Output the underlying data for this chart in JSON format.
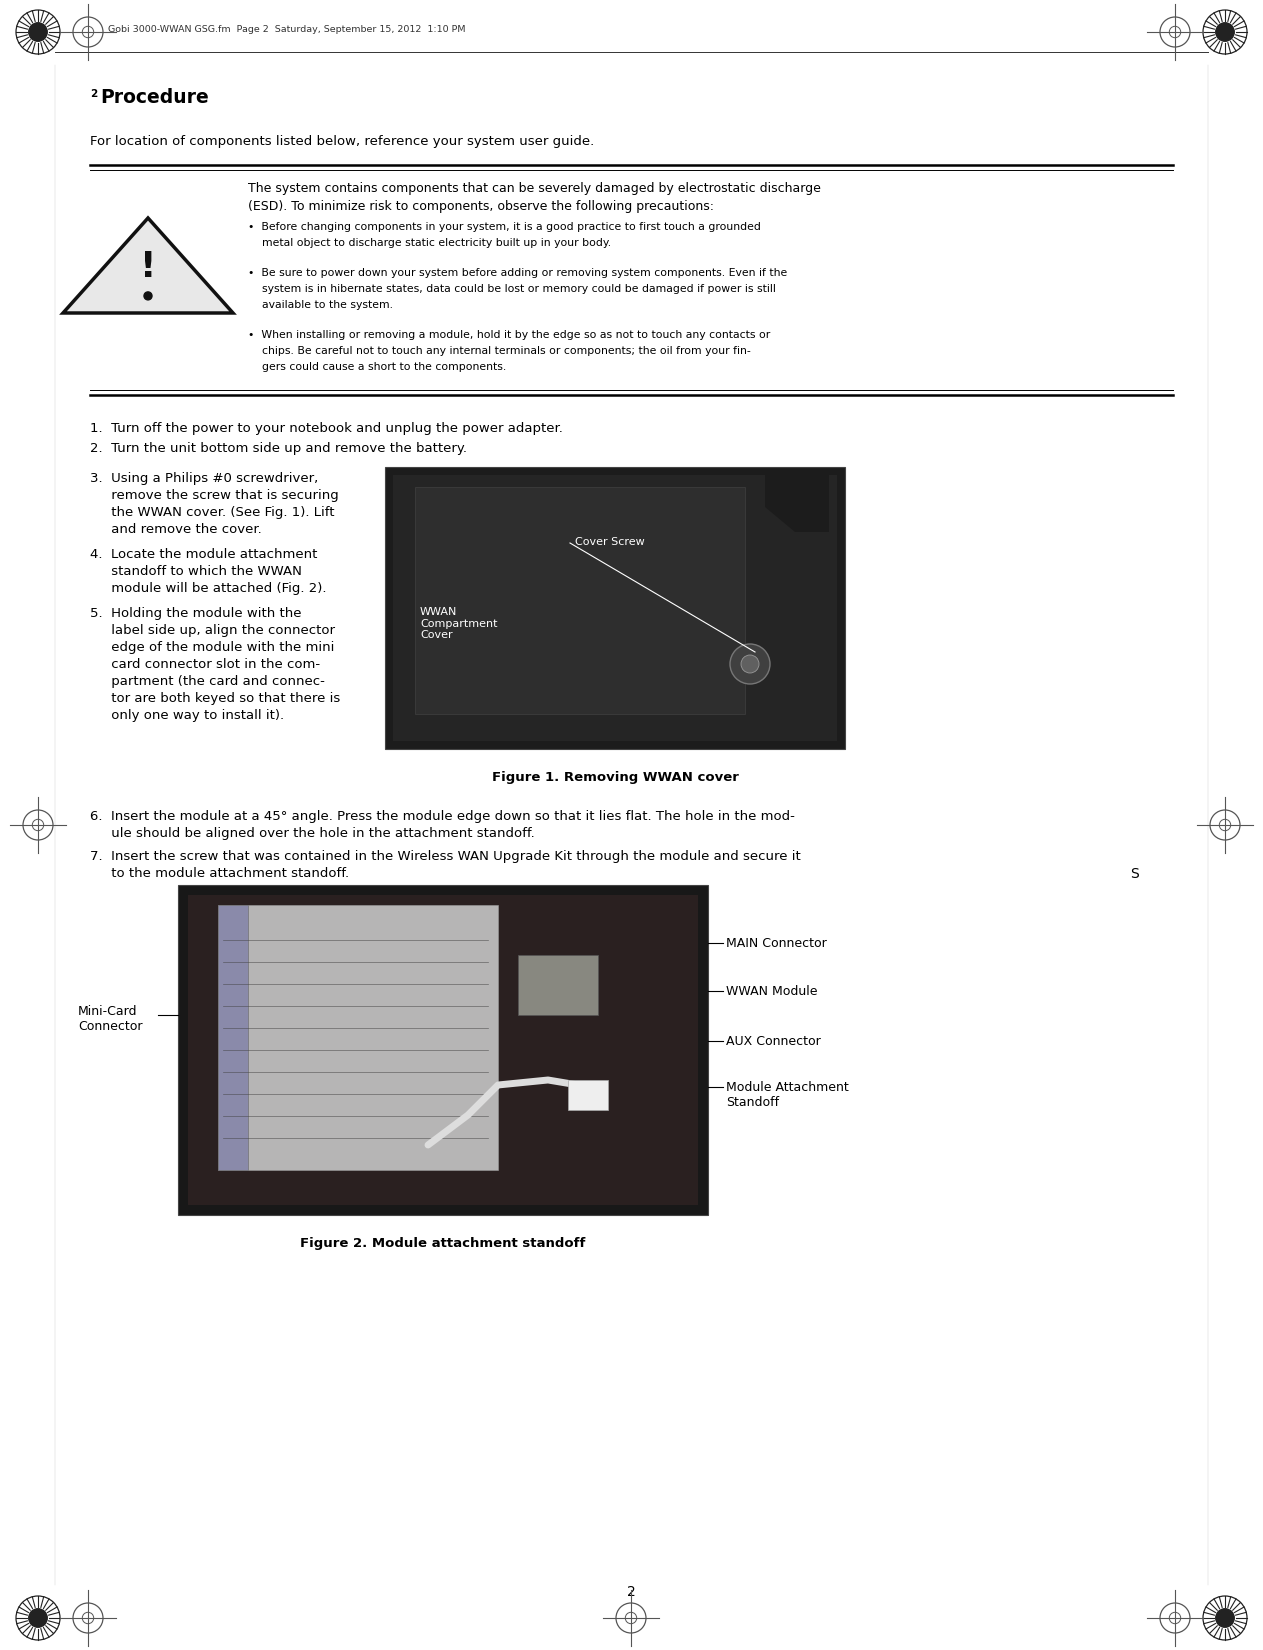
{
  "page_width": 12.63,
  "page_height": 16.5,
  "dpi": 100,
  "bg_color": "#ffffff",
  "header_text": "Gobi 3000-WWAN GSG.fm  Page 2  Saturday, September 15, 2012  1:10 PM",
  "title_num": "2",
  "title_word": "Procedure",
  "subtitle": "For location of components listed below, reference your system user guide.",
  "warning_intro_line1": "The system contains components that can be severely damaged by electrostatic discharge",
  "warning_intro_line2": "(ESD). To minimize risk to components, observe the following precautions:",
  "bullet1_line1": "•  Before changing components in your system, it is a good practice to first touch a grounded",
  "bullet1_line2": "    metal object to discharge static electricity built up in your body.",
  "bullet2_line1": "•  Be sure to power down your system before adding or removing system components. Even if the",
  "bullet2_line2": "    system is in hibernate states, data could be lost or memory could be damaged if power is still",
  "bullet2_line3": "    available to the system.",
  "bullet3_line1": "•  When installing or removing a module, hold it by the edge so as not to touch any contacts or",
  "bullet3_line2": "    chips. Be careful not to touch any internal terminals or components; the oil from your fin-",
  "bullet3_line3": "    gers could cause a short to the components.",
  "step1": "1.  Turn off the power to your notebook and unplug the power adapter.",
  "step2": "2.  Turn the unit bottom side up and remove the battery.",
  "step3_lines": [
    "3.  Using a Philips #0 screwdriver,",
    "     remove the screw that is securing",
    "     the WWAN cover. (See Fig. 1). Lift",
    "     and remove the cover."
  ],
  "step4_lines": [
    "4.  Locate the module attachment",
    "     standoff to which the WWAN",
    "     module will be attached (Fig. 2)."
  ],
  "step5_lines": [
    "5.  Holding the module with the",
    "     label side up, align the connector",
    "     edge of the module with the mini",
    "     card connector slot in the com-",
    "     partment (the card and connec-",
    "     tor are both keyed so that there is",
    "     only one way to install it)."
  ],
  "fig1_caption": "Figure 1. Removing WWAN cover",
  "step6_line1": "6.  Insert the module at a 45° angle. Press the module edge down so that it lies flat. The hole in the mod-",
  "step6_line2": "     ule should be aligned over the hole in the attachment standoff.",
  "step7_line1": "7.  Insert the screw that was contained in the Wireless WAN Upgrade Kit through the module and secure it",
  "step7_line2": "     to the module attachment standoff.",
  "fig2_s_label": "S",
  "fig2_minicardconn_line1": "Mini-Card",
  "fig2_minicardconn_line2": "Connector",
  "fig2_main": "MAIN Connector",
  "fig2_wwan": "WWAN Module",
  "fig2_aux": "AUX Connector",
  "fig2_modatt_line1": "Module Attachment",
  "fig2_modatt_line2": "Standoff",
  "fig2_caption": "Figure 2. Module attachment standoff",
  "page_num": "2",
  "fig1_cover_screw": "Cover Screw",
  "fig1_wwan_comp": "WWAN\nCompartment\nCover",
  "text_color": "#000000",
  "line_color": "#000000",
  "mark_color": "#555555"
}
